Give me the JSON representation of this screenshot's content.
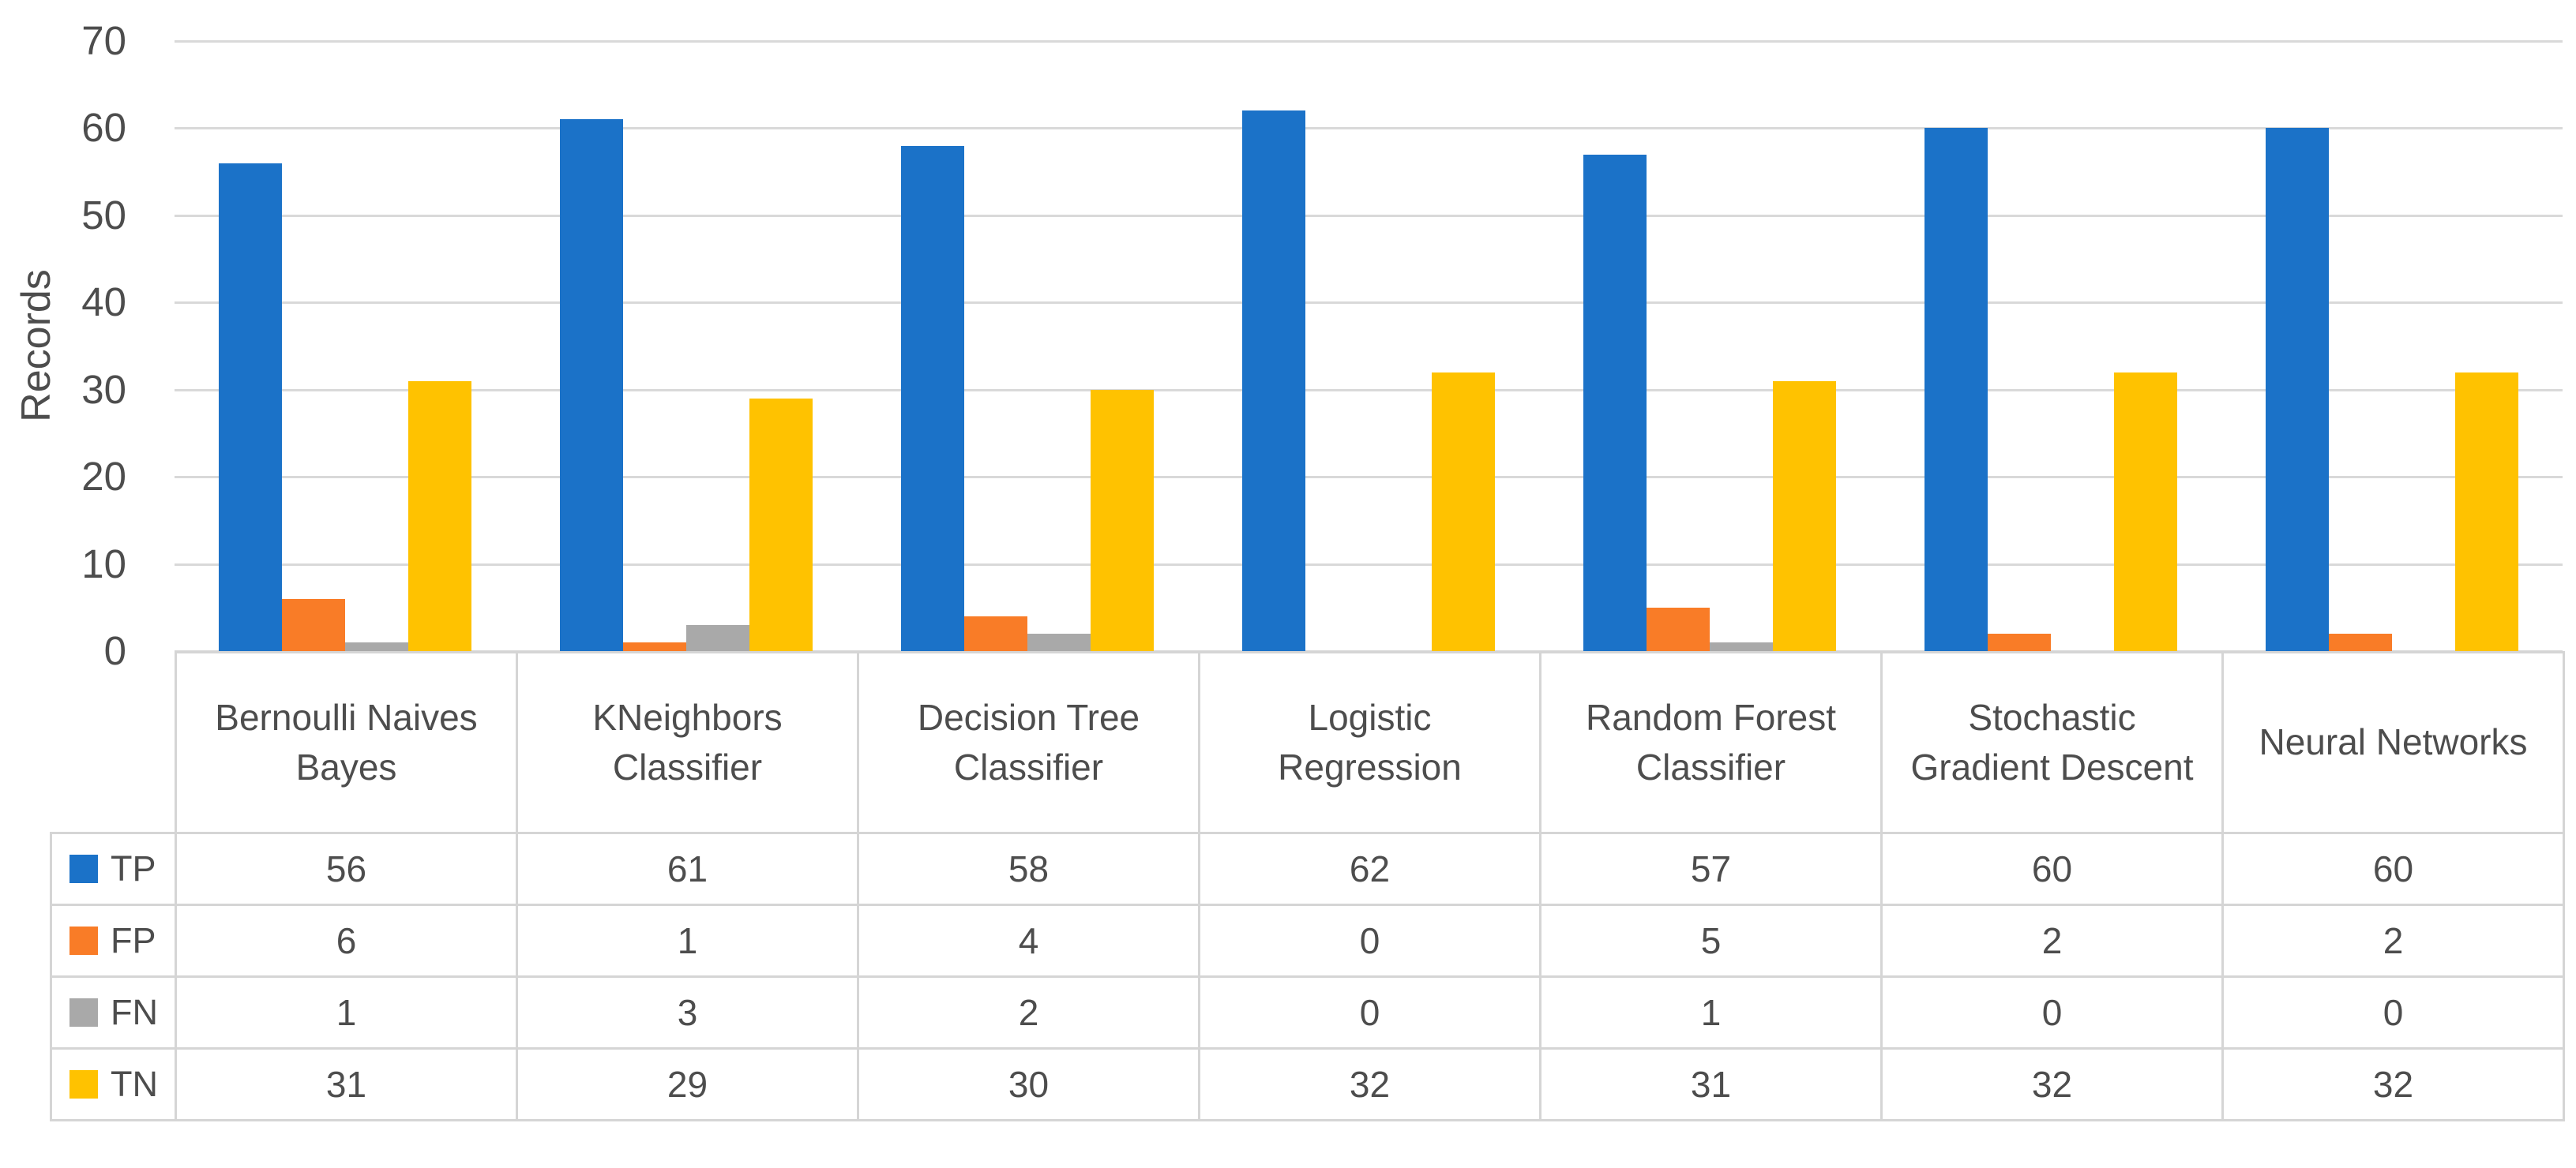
{
  "figure": {
    "background": "#FFFFFF",
    "text_color": "#4D4D4D",
    "gridline_color": "#D9D9D9",
    "table_border_color": "#D5D5D5"
  },
  "chart_data": {
    "type": "bar",
    "title": "",
    "xlabel": "",
    "ylabel": "Records",
    "ylim": [
      0,
      70
    ],
    "yticks": [
      70,
      60,
      50,
      40,
      30,
      20,
      10,
      0
    ],
    "grid": true,
    "legend_position": "data-table-row-headers",
    "categories": [
      "Bernoulli Naives Bayes",
      "KNeighbors Classifier",
      "Decision Tree Classifier",
      "Logistic Regression",
      "Random Forest Classifier",
      "Stochastic Gradient Descent",
      "Neural Networks"
    ],
    "series": [
      {
        "name": "TP",
        "color": "#1B72C8",
        "values": [
          56,
          61,
          58,
          62,
          57,
          60,
          60
        ]
      },
      {
        "name": "FP",
        "color": "#F97C27",
        "values": [
          6,
          1,
          4,
          0,
          5,
          2,
          2
        ]
      },
      {
        "name": "FN",
        "color": "#A9A9A9",
        "values": [
          1,
          3,
          2,
          0,
          1,
          0,
          0
        ]
      },
      {
        "name": "TN",
        "color": "#FFC200",
        "values": [
          31,
          29,
          30,
          32,
          31,
          32,
          32
        ]
      }
    ]
  }
}
